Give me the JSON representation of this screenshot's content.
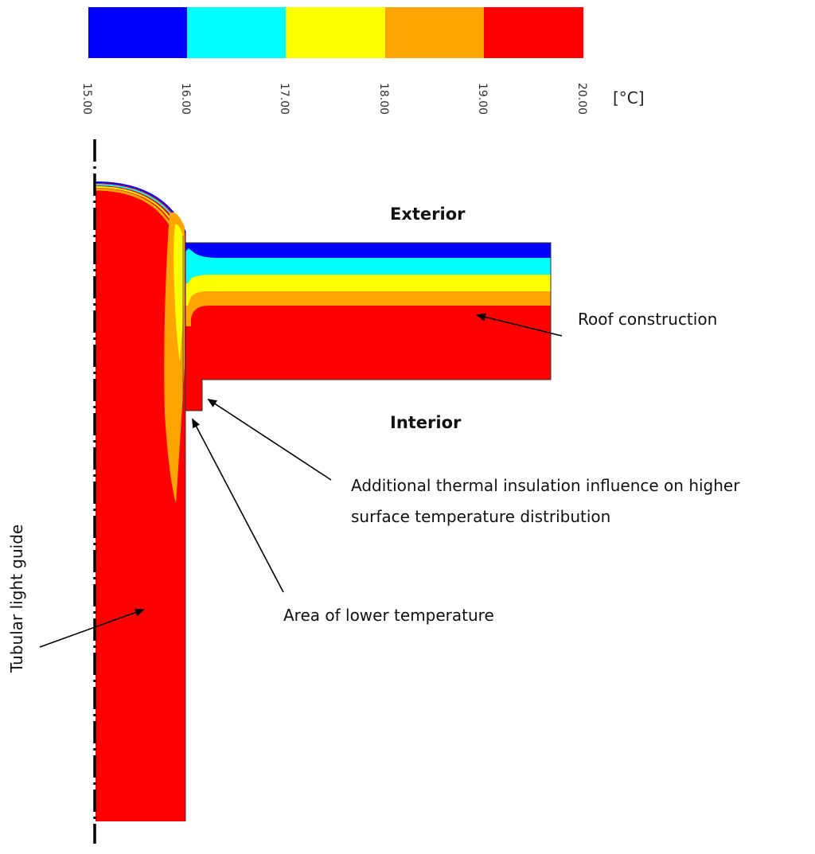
{
  "legend": {
    "unit": "[°C]",
    "bands": [
      {
        "from": "15.00",
        "to": "16.00",
        "color": "#0000ff"
      },
      {
        "from": "16.00",
        "to": "17.00",
        "color": "#00ffff"
      },
      {
        "from": "17.00",
        "to": "18.00",
        "color": "#ffff00"
      },
      {
        "from": "18.00",
        "to": "19.00",
        "color": "#ffa500"
      },
      {
        "from": "19.00",
        "to": "20.00",
        "color": "#ff0000"
      }
    ],
    "tick_labels": [
      "15.00",
      "16.00",
      "17.00",
      "18.00",
      "19.00",
      "20.00"
    ]
  },
  "labels": {
    "exterior": "Exterior",
    "interior": "Interior",
    "roof_construction": "Roof construction",
    "insulation_line1": "Additional thermal insulation influence on higher",
    "insulation_line2": "surface temperature distribution",
    "lower_temperature": "Area of lower temperature",
    "tubular_light_guide": "Tubular light guide"
  },
  "colors": {
    "t15_16": "#0000ff",
    "t16_17": "#00ffff",
    "t17_18": "#ffff00",
    "t18_19": "#ffa500",
    "t19_20": "#ff0000"
  }
}
